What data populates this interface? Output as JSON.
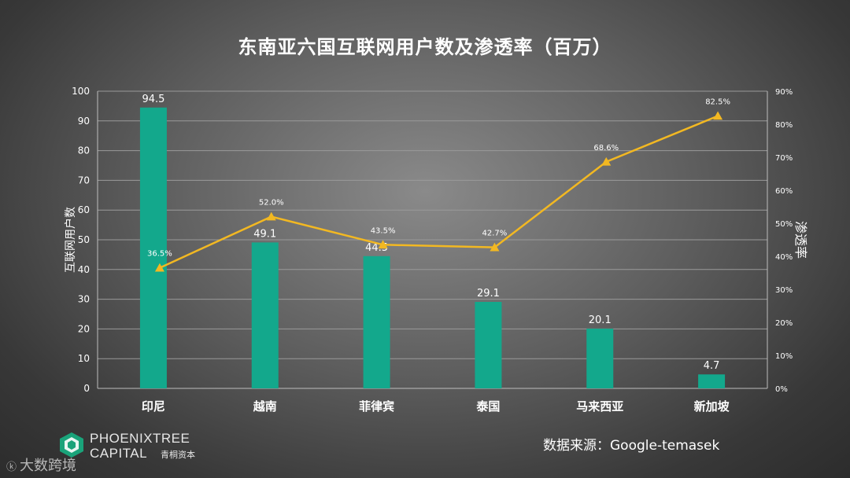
{
  "colors": {
    "bar": "#13a88c",
    "line": "#f2b822",
    "marker": "#f2b822",
    "grid": "#9a9a9a",
    "text": "#ffffff"
  },
  "chart_data": {
    "type": "bar+line",
    "title": "东南亚六国互联网用户数及渗透率（百万）",
    "categories": [
      "印尼",
      "越南",
      "菲律宾",
      "泰国",
      "马来西亚",
      "新加坡"
    ],
    "series": [
      {
        "name": "",
        "type": "bar",
        "axis": "left",
        "values": [
          94.5,
          49.1,
          44.5,
          29.1,
          20.1,
          4.7
        ],
        "labels": [
          "94.5",
          "49.1",
          "44.5",
          "29.1",
          "20.1",
          "4.7"
        ]
      },
      {
        "name": "",
        "type": "line",
        "axis": "right",
        "values": [
          36.5,
          52.0,
          43.5,
          42.7,
          68.6,
          82.5
        ],
        "labels": [
          "36.5%",
          "52.0%",
          "43.5%",
          "42.7%",
          "68.6%",
          "82.5%"
        ]
      }
    ],
    "ylabel": "互联网用户数",
    "y2label": "渗透率",
    "ylim": [
      0,
      100
    ],
    "y2lim": [
      0,
      90
    ],
    "yticks": [
      "0",
      "10",
      "20",
      "30",
      "40",
      "50",
      "60",
      "70",
      "80",
      "90",
      "100"
    ],
    "y2ticks": [
      "0%",
      "10%",
      "20%",
      "30%",
      "40%",
      "50%",
      "60%",
      "70%",
      "80%",
      "90%"
    ],
    "grid": true
  },
  "source": "数据来源：Google-temasek",
  "logo": {
    "line1": "PHOENIXTREE",
    "line2": "CAPITAL",
    "cn": "青桐资本",
    "icon": "phoenixtree-logo-icon"
  },
  "watermark": {
    "logo_text": "ⓚ",
    "text": "大数跨境"
  }
}
